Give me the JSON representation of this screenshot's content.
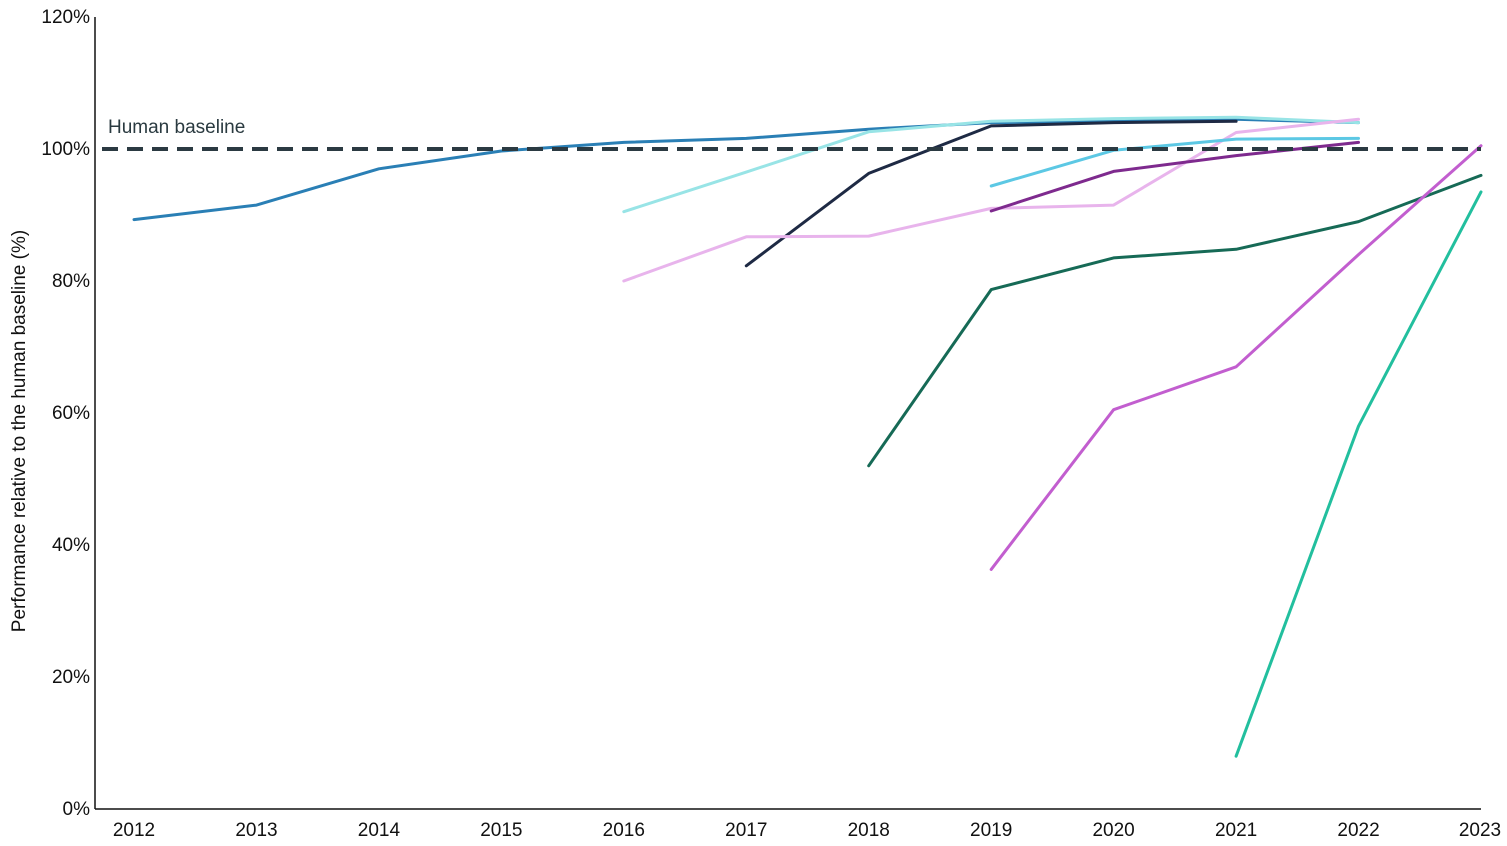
{
  "chart_data": {
    "type": "line",
    "title": "",
    "xlabel": "",
    "ylabel": "Performance relative to the human baseline (%)",
    "x": [
      2012,
      2013,
      2014,
      2015,
      2016,
      2017,
      2018,
      2019,
      2020,
      2021,
      2022,
      2023
    ],
    "x_tick_labels": [
      "2012",
      "2013",
      "2014",
      "2015",
      "2016",
      "2017",
      "2018",
      "2019",
      "2020",
      "2021",
      "2022",
      "2023"
    ],
    "ylim": [
      0,
      120
    ],
    "y_ticks": [
      0,
      20,
      40,
      60,
      80,
      100,
      120
    ],
    "y_tick_labels": [
      "0%",
      "20%",
      "40%",
      "60%",
      "80%",
      "100%",
      "120%"
    ],
    "grid": false,
    "legend": "none",
    "reference_line": {
      "label": "Human baseline",
      "value": 100,
      "color": "#2b3a42",
      "style": "dashed"
    },
    "series": [
      {
        "color": "#2a7fb5",
        "points": [
          [
            2012,
            89.3
          ],
          [
            2013,
            91.5
          ],
          [
            2014,
            97.0
          ],
          [
            2015,
            99.7
          ],
          [
            2016,
            101.0
          ],
          [
            2017,
            101.6
          ],
          [
            2018,
            103.0
          ],
          [
            2019,
            104.0
          ],
          [
            2020,
            104.2
          ],
          [
            2021,
            104.5
          ],
          [
            2022,
            104.0
          ]
        ]
      },
      {
        "color": "#98e4e6",
        "points": [
          [
            2016,
            90.5
          ],
          [
            2017,
            96.5
          ],
          [
            2018,
            102.6
          ],
          [
            2019,
            104.2
          ],
          [
            2020,
            104.6
          ],
          [
            2021,
            104.8
          ],
          [
            2022,
            104.0
          ]
        ]
      },
      {
        "color": "#1e2a44",
        "points": [
          [
            2017,
            82.3
          ],
          [
            2018,
            96.3
          ],
          [
            2019,
            103.5
          ],
          [
            2020,
            104.0
          ],
          [
            2021,
            104.2
          ]
        ]
      },
      {
        "color": "#e8b4ec",
        "points": [
          [
            2016,
            80.0
          ],
          [
            2017,
            86.7
          ],
          [
            2018,
            86.8
          ],
          [
            2019,
            91.0
          ],
          [
            2020,
            91.5
          ],
          [
            2021,
            102.5
          ],
          [
            2022,
            104.5
          ]
        ]
      },
      {
        "color": "#5cc8e4",
        "points": [
          [
            2019,
            94.4
          ],
          [
            2020,
            99.8
          ],
          [
            2021,
            101.5
          ],
          [
            2022,
            101.6
          ]
        ]
      },
      {
        "color": "#7e2a8e",
        "points": [
          [
            2019,
            90.6
          ],
          [
            2020,
            96.6
          ],
          [
            2021,
            99.0
          ],
          [
            2022,
            101.0
          ]
        ]
      },
      {
        "color": "#166a56",
        "points": [
          [
            2018,
            52.0
          ],
          [
            2019,
            78.7
          ],
          [
            2020,
            83.5
          ],
          [
            2021,
            84.8
          ],
          [
            2022,
            89.0
          ],
          [
            2023,
            96.0
          ]
        ]
      },
      {
        "color": "#c25ecf",
        "points": [
          [
            2019,
            36.3
          ],
          [
            2020,
            60.5
          ],
          [
            2021,
            67.0
          ],
          [
            2022,
            84.0
          ],
          [
            2023,
            100.5
          ]
        ]
      },
      {
        "color": "#22bf9e",
        "points": [
          [
            2021,
            8.0
          ],
          [
            2022,
            58.0
          ],
          [
            2023,
            93.5
          ]
        ]
      }
    ]
  }
}
